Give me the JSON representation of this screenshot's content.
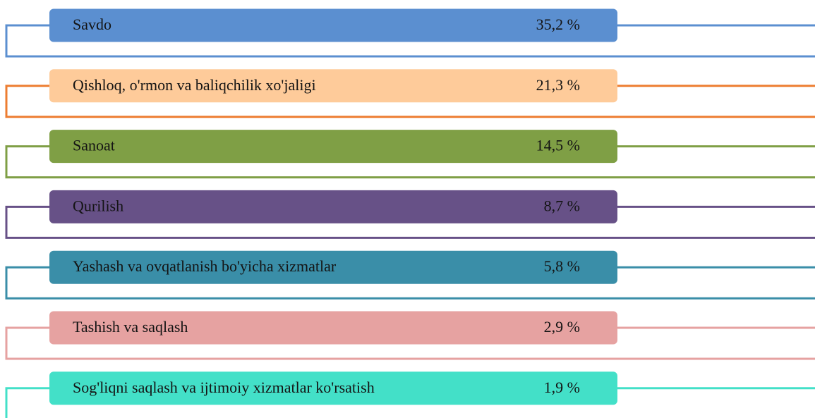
{
  "items": [
    {
      "label": "Savdo",
      "value": "35,2 %",
      "color": "#5b8fd0",
      "line_color": "#5b8fd0"
    },
    {
      "label": "Qishloq, o'rmon va baliqchilik xo'jaligi",
      "value": "21,3 %",
      "color": "#fecb9a",
      "line_color": "#ed7d31"
    },
    {
      "label": "Sanoat",
      "value": "14,5 %",
      "color": "#7f9f45",
      "line_color": "#7f9f45"
    },
    {
      "label": "Qurilish",
      "value": "8,7 %",
      "color": "#675187",
      "line_color": "#675187"
    },
    {
      "label": "Yashash va ovqatlanish bo'yicha xizmatlar",
      "value": "5,8 %",
      "color": "#3a8ea8",
      "line_color": "#3a8ea8"
    },
    {
      "label": "Tashish va saqlash",
      "value": "2,9 %",
      "color": "#e6a2a1",
      "line_color": "#e6a2a1"
    },
    {
      "label": "Sog'liqni saqlash va ijtimoiy xizmatlar ko'rsatish",
      "value": "1,9 %",
      "color": "#43e0c8",
      "line_color": "#43e0c8"
    }
  ]
}
